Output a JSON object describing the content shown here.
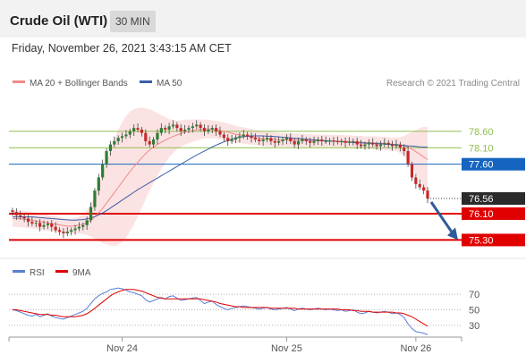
{
  "header": {
    "title": "Crude Oil (WTI)",
    "timeframe": "30 MIN"
  },
  "datetime": "Friday, November 26, 2021 3:43:15 AM CET",
  "chart_data": [
    {
      "type": "candlestick",
      "legend": [
        {
          "name": "MA 20 + Bollinger Bands",
          "color": "#f08a8a"
        },
        {
          "name": "MA 50",
          "color": "#3a5da8"
        }
      ],
      "credit": "Research © 2021 Trading Central",
      "ylim": [
        74.85,
        79.6
      ],
      "price_now": "76.56",
      "levels": [
        {
          "value": 78.6,
          "label": "78.60",
          "kind": "target",
          "color": "#8fbf4f"
        },
        {
          "value": 78.1,
          "label": "78.10",
          "kind": "target",
          "color": "#8fbf4f"
        },
        {
          "value": 77.6,
          "label": "77.60",
          "kind": "pivot",
          "color": "#1565c0"
        },
        {
          "value": 76.1,
          "label": "76.10",
          "kind": "support",
          "color": "#e00000"
        },
        {
          "value": 75.3,
          "label": "75.30",
          "kind": "support",
          "color": "#e00000"
        }
      ],
      "forecast_arrow": {
        "from": 76.56,
        "to": 75.3
      },
      "close": [
        76.15,
        76.05,
        76.0,
        75.95,
        75.85,
        75.8,
        75.82,
        75.7,
        75.75,
        75.8,
        75.7,
        75.6,
        75.55,
        75.5,
        75.55,
        75.6,
        75.65,
        75.7,
        75.75,
        75.9,
        76.3,
        76.8,
        77.2,
        77.6,
        78.0,
        78.2,
        78.3,
        78.4,
        78.45,
        78.5,
        78.6,
        78.7,
        78.65,
        78.55,
        78.3,
        78.2,
        78.35,
        78.55,
        78.7,
        78.65,
        78.75,
        78.8,
        78.7,
        78.6,
        78.65,
        78.7,
        78.75,
        78.8,
        78.7,
        78.6,
        78.65,
        78.7,
        78.6,
        78.5,
        78.4,
        78.3,
        78.35,
        78.4,
        78.45,
        78.5,
        78.45,
        78.4,
        78.35,
        78.3,
        78.35,
        78.4,
        78.3,
        78.25,
        78.3,
        78.35,
        78.4,
        78.3,
        78.2,
        78.3,
        78.35,
        78.3,
        78.25,
        78.3,
        78.35,
        78.3,
        78.3,
        78.32,
        78.3,
        78.28,
        78.3,
        78.25,
        78.28,
        78.3,
        78.2,
        78.15,
        78.2,
        78.25,
        78.2,
        78.15,
        78.2,
        78.25,
        78.2,
        78.15,
        78.2,
        78.1,
        78.0,
        77.6,
        77.2,
        77.0,
        76.9,
        76.8,
        76.56
      ],
      "ma50": [
        76.0,
        76.0,
        76.0,
        76.0,
        76.0,
        76.0,
        75.99,
        75.98,
        75.97,
        75.96,
        75.95,
        75.94,
        75.93,
        75.92,
        75.91,
        75.9,
        75.9,
        75.91,
        75.92,
        75.94,
        75.97,
        76.01,
        76.06,
        76.12,
        76.19,
        76.27,
        76.35,
        76.43,
        76.51,
        76.59,
        76.67,
        76.75,
        76.83,
        76.9,
        76.97,
        77.04,
        77.11,
        77.18,
        77.25,
        77.32,
        77.39,
        77.46,
        77.53,
        77.6,
        77.67,
        77.74,
        77.81,
        77.88,
        77.94,
        78.0,
        78.06,
        78.12,
        78.18,
        78.23,
        78.28,
        78.32,
        78.36,
        78.4,
        78.42,
        78.44,
        78.45,
        78.46,
        78.46,
        78.46,
        78.46,
        78.45,
        78.45,
        78.44,
        78.43,
        78.42,
        78.41,
        78.4,
        78.39,
        78.38,
        78.37,
        78.36,
        78.35,
        78.34,
        78.33,
        78.32,
        78.31,
        78.3,
        78.3,
        78.29,
        78.28,
        78.27,
        78.27,
        78.26,
        78.25,
        78.25,
        78.24,
        78.24,
        78.23,
        78.22,
        78.22,
        78.21,
        78.2,
        78.2,
        78.19,
        78.18,
        78.17,
        78.16,
        78.15,
        78.14,
        78.13,
        78.12,
        78.12
      ],
      "ma20": [
        75.95,
        75.95,
        75.94,
        75.93,
        75.92,
        75.9,
        75.88,
        75.86,
        75.84,
        75.82,
        75.8,
        75.78,
        75.76,
        75.74,
        75.72,
        75.72,
        75.73,
        75.75,
        75.78,
        75.83,
        75.9,
        76.0,
        76.12,
        76.26,
        76.42,
        76.58,
        76.74,
        76.9,
        77.06,
        77.22,
        77.38,
        77.52,
        77.66,
        77.8,
        77.92,
        78.03,
        78.12,
        78.2,
        78.27,
        78.33,
        78.39,
        78.44,
        78.49,
        78.53,
        78.57,
        78.6,
        78.62,
        78.64,
        78.66,
        78.67,
        78.67,
        78.66,
        78.64,
        78.62,
        78.6,
        78.57,
        78.54,
        78.51,
        78.49,
        78.47,
        78.45,
        78.43,
        78.41,
        78.39,
        78.38,
        78.37,
        78.36,
        78.35,
        78.34,
        78.34,
        78.34,
        78.33,
        78.33,
        78.33,
        78.33,
        78.32,
        78.32,
        78.31,
        78.31,
        78.31,
        78.31,
        78.31,
        78.3,
        78.3,
        78.3,
        78.29,
        78.29,
        78.28,
        78.27,
        78.27,
        78.26,
        78.26,
        78.25,
        78.24,
        78.24,
        78.23,
        78.22,
        78.21,
        78.2,
        78.18,
        78.16,
        78.12,
        78.06,
        77.98,
        77.9,
        77.82,
        77.74
      ],
      "band_width": [
        0.25,
        0.25,
        0.25,
        0.25,
        0.25,
        0.25,
        0.25,
        0.25,
        0.25,
        0.24,
        0.24,
        0.24,
        0.23,
        0.23,
        0.23,
        0.23,
        0.24,
        0.26,
        0.3,
        0.38,
        0.5,
        0.66,
        0.85,
        1.05,
        1.25,
        1.45,
        1.62,
        1.75,
        1.82,
        1.85,
        1.82,
        1.75,
        1.65,
        1.52,
        1.38,
        1.24,
        1.1,
        0.95,
        0.82,
        0.7,
        0.58,
        0.5,
        0.44,
        0.4,
        0.38,
        0.36,
        0.34,
        0.32,
        0.3,
        0.29,
        0.28,
        0.27,
        0.27,
        0.27,
        0.27,
        0.27,
        0.26,
        0.26,
        0.25,
        0.25,
        0.24,
        0.24,
        0.23,
        0.23,
        0.23,
        0.22,
        0.22,
        0.22,
        0.21,
        0.21,
        0.21,
        0.2,
        0.2,
        0.2,
        0.2,
        0.2,
        0.2,
        0.19,
        0.19,
        0.19,
        0.19,
        0.19,
        0.19,
        0.19,
        0.19,
        0.19,
        0.19,
        0.19,
        0.19,
        0.19,
        0.19,
        0.19,
        0.2,
        0.2,
        0.2,
        0.2,
        0.2,
        0.2,
        0.21,
        0.24,
        0.3,
        0.4,
        0.52,
        0.66,
        0.8,
        0.92,
        1.0
      ]
    },
    {
      "type": "line",
      "legend": [
        {
          "name": "RSI",
          "color": "#5a7fd6"
        },
        {
          "name": "9MA",
          "color": "#e00000"
        }
      ],
      "ylim": [
        15,
        85
      ],
      "levels": [
        70,
        50,
        30
      ],
      "x_ticks": [
        {
          "label": "Nov 24",
          "index": 28
        },
        {
          "label": "Nov 25",
          "index": 70
        },
        {
          "label": "Nov 26",
          "index": 103
        }
      ],
      "rsi": [
        50,
        49,
        47,
        45,
        43,
        42,
        44,
        41,
        43,
        45,
        42,
        40,
        39,
        38,
        40,
        42,
        44,
        46,
        48,
        52,
        58,
        64,
        68,
        71,
        73,
        76,
        77,
        78,
        77,
        75,
        73,
        72,
        70,
        68,
        63,
        60,
        62,
        64,
        66,
        64,
        67,
        68,
        65,
        62,
        63,
        64,
        65,
        66,
        62,
        58,
        60,
        61,
        57,
        54,
        52,
        50,
        52,
        53,
        54,
        55,
        54,
        53,
        52,
        51,
        52,
        53,
        51,
        50,
        51,
        52,
        53,
        51,
        49,
        51,
        52,
        51,
        50,
        51,
        52,
        51,
        50,
        51,
        50,
        49,
        50,
        48,
        49,
        50,
        47,
        45,
        46,
        48,
        47,
        46,
        47,
        48,
        47,
        45,
        46,
        44,
        40,
        32,
        26,
        22,
        21,
        20,
        18
      ],
      "ma9": [
        50,
        50,
        49,
        48,
        47,
        46,
        45,
        44,
        44,
        44,
        43,
        43,
        42,
        41,
        41,
        41,
        41,
        42,
        43,
        45,
        48,
        52,
        56,
        60,
        64,
        68,
        71,
        73,
        75,
        76,
        76,
        76,
        75,
        74,
        72,
        70,
        68,
        66,
        65,
        64,
        64,
        64,
        64,
        64,
        64,
        64,
        64,
        64,
        64,
        63,
        62,
        61,
        60,
        58,
        57,
        56,
        55,
        54,
        54,
        53,
        53,
        53,
        53,
        53,
        53,
        53,
        52,
        52,
        52,
        52,
        52,
        52,
        52,
        51,
        51,
        51,
        51,
        51,
        51,
        51,
        51,
        51,
        51,
        51,
        50,
        50,
        50,
        49,
        49,
        48,
        48,
        48,
        47,
        47,
        47,
        47,
        47,
        47,
        46,
        46,
        45,
        43,
        41,
        38,
        35,
        32,
        29
      ]
    }
  ]
}
